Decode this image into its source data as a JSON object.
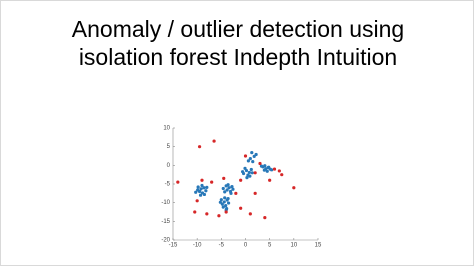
{
  "chart_data": {
    "type": "scatter",
    "title": "Anomaly / outlier detection using isolation forest Indepth Intuition",
    "xlim": [
      -15,
      15
    ],
    "xticks": [
      -15,
      -10,
      -5,
      0,
      5,
      10,
      15
    ],
    "ylim": [
      -20,
      10
    ],
    "yticks": [
      -20,
      -15,
      -10,
      -5,
      0,
      5,
      10
    ],
    "series": [
      {
        "color": "#2878b8",
        "x": [
          -9.8,
          -9.2,
          -8.6,
          -9.5,
          -8.9,
          -8.2,
          -9.9,
          -9.0,
          -8.5,
          -9.3,
          -8.0,
          -10.3,
          -4.0,
          -3.4,
          -2.8,
          -3.8,
          -3.1,
          -4.3,
          -2.6,
          -3.6,
          -3.0,
          -4.6,
          -5.0,
          -4.4,
          -3.8,
          -4.8,
          -4.1,
          -3.5,
          -4.6,
          -3.9,
          -5.2,
          -4.3,
          -3.6,
          -4.0,
          0.2,
          0.8,
          -0.4,
          0.5,
          1.2,
          -0.1,
          0.9,
          0.3,
          -0.6,
          1.4,
          1.0,
          1.8,
          0.6,
          1.5,
          2.2,
          1.3,
          3.6,
          4.2,
          4.8,
          3.9,
          4.5,
          5.1,
          3.3,
          4.0,
          4.7,
          5.4
        ],
        "y": [
          -5.8,
          -6.3,
          -6.0,
          -7.0,
          -7.4,
          -6.8,
          -6.6,
          -5.4,
          -7.8,
          -8.0,
          -5.9,
          -7.2,
          -5.5,
          -6.0,
          -5.7,
          -6.6,
          -7.0,
          -7.1,
          -6.4,
          -5.2,
          -7.5,
          -6.2,
          -9.2,
          -9.8,
          -9.3,
          -10.4,
          -10.8,
          -10.1,
          -11.2,
          -11.6,
          -9.9,
          -8.7,
          -8.9,
          -12.0,
          -1.4,
          -1.9,
          -2.2,
          -2.6,
          -1.1,
          -0.8,
          -2.9,
          -3.3,
          -1.7,
          -2.0,
          1.8,
          2.4,
          1.2,
          1.0,
          2.9,
          3.4,
          -0.4,
          -0.9,
          -0.5,
          -1.3,
          -1.6,
          -1.0,
          -0.2,
          -0.1,
          -0.6,
          -1.2
        ]
      },
      {
        "color": "#d62728",
        "x": [
          -9.5,
          -6.5,
          -14.0,
          -9.0,
          -10.0,
          -10.5,
          -8.0,
          -5.5,
          -4.0,
          -1.0,
          1.0,
          -4.5,
          -1.0,
          2.0,
          2.0,
          5.0,
          6.0,
          7.0,
          10.0,
          4.0,
          7.5,
          -2.0,
          3.0,
          0.0,
          -7.0
        ],
        "y": [
          5.0,
          6.5,
          -4.5,
          -4.0,
          -9.5,
          -12.5,
          -13.0,
          -13.5,
          -12.5,
          -11.5,
          -13.0,
          -3.5,
          -4.0,
          -2.0,
          -7.5,
          -4.0,
          -1.0,
          -1.5,
          -6.0,
          -14.0,
          -2.5,
          -7.5,
          0.5,
          2.5,
          -4.5
        ]
      }
    ]
  }
}
